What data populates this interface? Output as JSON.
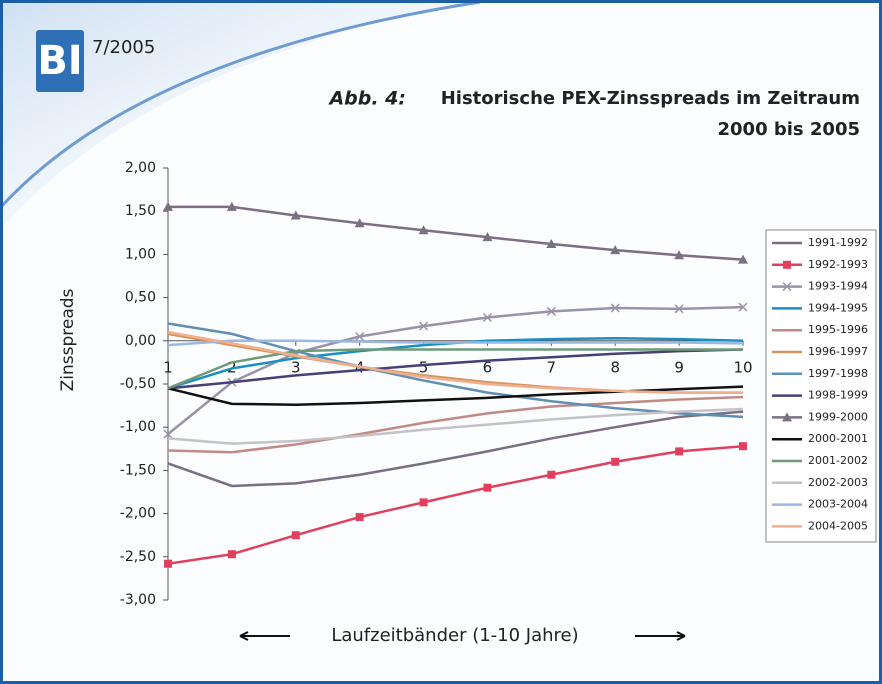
{
  "header": {
    "logo": "BI",
    "issue": "7/2005"
  },
  "chart_data": {
    "type": "line",
    "figure_label": "Abb. 4:",
    "title": [
      "Historische PEX-Zinsspreads im Zeitraum",
      "2000 bis 2005"
    ],
    "x_label": "Laufzeitbänder (1-10 Jahre)",
    "y_label": "Zinsspreads",
    "x": [
      1,
      2,
      3,
      4,
      5,
      6,
      7,
      8,
      9,
      10
    ],
    "xlim": [
      1,
      10
    ],
    "xticks": [
      1,
      2,
      3,
      4,
      5,
      6,
      7,
      8,
      9,
      10
    ],
    "ylim": [
      -3,
      2
    ],
    "yticks": [
      {
        "value": 2,
        "label": "2,00"
      },
      {
        "value": 1.5,
        "label": "1,50"
      },
      {
        "value": 1,
        "label": "1,00"
      },
      {
        "value": 0.5,
        "label": "0,50"
      },
      {
        "value": 0,
        "label": "0,00"
      },
      {
        "value": -0.5,
        "label": "-0,50"
      },
      {
        "value": -1,
        "label": "-1,00"
      },
      {
        "value": -1.5,
        "label": "-1,50"
      },
      {
        "value": -2,
        "label": "-2,00"
      },
      {
        "value": -2.5,
        "label": "-2,50"
      },
      {
        "value": -3,
        "label": "-3,00"
      }
    ],
    "grid": false,
    "legend": "right",
    "series": [
      {
        "name": "1991-1992",
        "color": "#7a6f82",
        "values": [
          -1.42,
          -1.68,
          -1.65,
          -1.55,
          -1.42,
          -1.28,
          -1.13,
          -1.0,
          -0.88,
          -0.82
        ]
      },
      {
        "name": "1992-1993",
        "color": "#e0405e",
        "marker": "square",
        "values": [
          -2.58,
          -2.47,
          -2.25,
          -2.04,
          -1.87,
          -1.7,
          -1.55,
          -1.4,
          -1.28,
          -1.22
        ]
      },
      {
        "name": "1993-1994",
        "color": "#9a92a8",
        "marker": "cross",
        "values": [
          -1.08,
          -0.48,
          -0.14,
          0.05,
          0.17,
          0.27,
          0.34,
          0.38,
          0.37,
          0.39
        ]
      },
      {
        "name": "1994-1995",
        "color": "#1a8fc0",
        "values": [
          -0.55,
          -0.32,
          -0.2,
          -0.12,
          -0.05,
          0.0,
          0.02,
          0.03,
          0.02,
          0.0
        ]
      },
      {
        "name": "1995-1996",
        "color": "#c28a86",
        "values": [
          -1.27,
          -1.29,
          -1.2,
          -1.08,
          -0.95,
          -0.84,
          -0.76,
          -0.72,
          -0.68,
          -0.65
        ]
      },
      {
        "name": "1996-1997",
        "color": "#d6955a",
        "values": [
          0.08,
          -0.05,
          -0.18,
          -0.3,
          -0.4,
          -0.48,
          -0.54,
          -0.58,
          -0.6,
          -0.6
        ]
      },
      {
        "name": "1997-1998",
        "color": "#5f8fb4",
        "values": [
          0.2,
          0.08,
          -0.12,
          -0.3,
          -0.46,
          -0.6,
          -0.7,
          -0.78,
          -0.84,
          -0.88
        ]
      },
      {
        "name": "1998-1999",
        "color": "#4a3f74",
        "values": [
          -0.55,
          -0.48,
          -0.4,
          -0.34,
          -0.28,
          -0.23,
          -0.19,
          -0.15,
          -0.12,
          -0.1
        ]
      },
      {
        "name": "1999-2000",
        "color": "#7a7082",
        "marker": "triangle",
        "values": [
          1.55,
          1.55,
          1.45,
          1.36,
          1.28,
          1.2,
          1.12,
          1.05,
          0.99,
          0.94
        ]
      },
      {
        "name": "2000-2001",
        "color": "#111111",
        "values": [
          -0.55,
          -0.73,
          -0.74,
          -0.72,
          -0.69,
          -0.66,
          -0.62,
          -0.59,
          -0.56,
          -0.53
        ]
      },
      {
        "name": "2001-2002",
        "color": "#6e9a78",
        "values": [
          -0.55,
          -0.25,
          -0.12,
          -0.1,
          -0.1,
          -0.1,
          -0.1,
          -0.1,
          -0.1,
          -0.1
        ]
      },
      {
        "name": "2002-2003",
        "color": "#c4c2c6",
        "values": [
          -1.13,
          -1.19,
          -1.16,
          -1.1,
          -1.03,
          -0.97,
          -0.91,
          -0.86,
          -0.82,
          -0.79
        ]
      },
      {
        "name": "2003-2004",
        "color": "#9cb8e0",
        "values": [
          -0.05,
          0.0,
          0.0,
          -0.01,
          -0.02,
          -0.02,
          -0.02,
          -0.02,
          -0.02,
          -0.03
        ]
      },
      {
        "name": "2004-2005",
        "color": "#f0b090",
        "values": [
          0.1,
          -0.03,
          -0.17,
          -0.3,
          -0.42,
          -0.5,
          -0.55,
          -0.58,
          -0.6,
          -0.6
        ]
      }
    ]
  }
}
